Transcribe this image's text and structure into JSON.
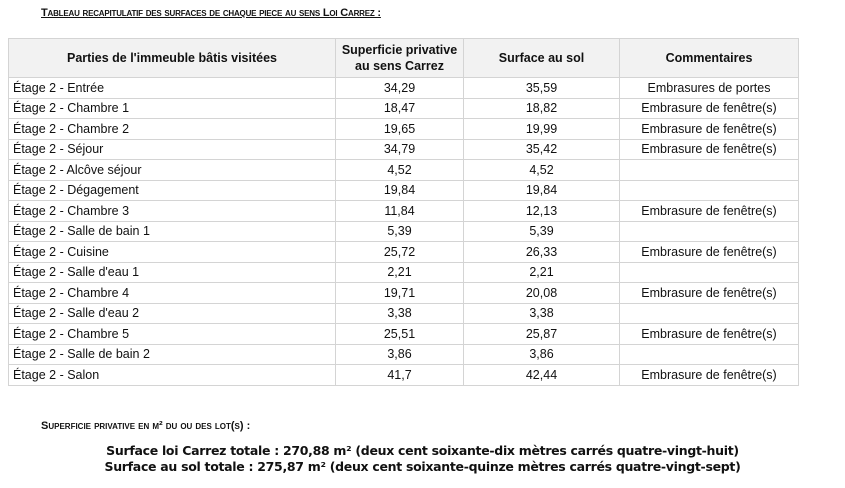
{
  "title": "Tableau recapitulatif des surfaces de chaque piece au sens Loi Carrez :",
  "table": {
    "headers": [
      "Parties de l'immeuble bâtis visitées",
      "Superficie privative au sens Carrez",
      "Surface au sol",
      "Commentaires"
    ],
    "rows": [
      [
        "Étage 2 - Entrée",
        "34,29",
        "35,59",
        "Embrasures de portes"
      ],
      [
        "Étage 2 - Chambre 1",
        "18,47",
        "18,82",
        "Embrasure de fenêtre(s)"
      ],
      [
        "Étage 2 - Chambre 2",
        "19,65",
        "19,99",
        "Embrasure de fenêtre(s)"
      ],
      [
        "Étage 2 - Séjour",
        "34,79",
        "35,42",
        "Embrasure de fenêtre(s)"
      ],
      [
        "Étage 2 - Alcôve séjour",
        "4,52",
        "4,52",
        ""
      ],
      [
        "Étage 2 - Dégagement",
        "19,84",
        "19,84",
        ""
      ],
      [
        "Étage 2 - Chambre 3",
        "11,84",
        "12,13",
        "Embrasure de fenêtre(s)"
      ],
      [
        "Étage 2 - Salle de bain 1",
        "5,39",
        "5,39",
        ""
      ],
      [
        "Étage 2 - Cuisine",
        "25,72",
        "26,33",
        "Embrasure de fenêtre(s)"
      ],
      [
        "Étage 2 - Salle d'eau 1",
        "2,21",
        "2,21",
        ""
      ],
      [
        "Étage 2 - Chambre 4",
        "19,71",
        "20,08",
        "Embrasure de fenêtre(s)"
      ],
      [
        "Étage 2 - Salle d'eau 2",
        "3,38",
        "3,38",
        ""
      ],
      [
        "Étage 2 - Chambre 5",
        "25,51",
        "25,87",
        "Embrasure de fenêtre(s)"
      ],
      [
        "Étage 2 - Salle de bain 2",
        "3,86",
        "3,86",
        ""
      ],
      [
        "Étage 2 - Salon",
        "41,7",
        "42,44",
        "Embrasure de fenêtre(s)"
      ]
    ]
  },
  "summary": {
    "heading": "Superficie privative en m² du ou des lot(s) :",
    "carrez": "Surface loi Carrez totale : 270,88 m² (deux cent soixante-dix mètres carrés quatre-vingt-huit)",
    "sol": "Surface au sol totale : 275,87 m² (deux cent soixante-quinze mètres carrés quatre-vingt-sept)"
  }
}
